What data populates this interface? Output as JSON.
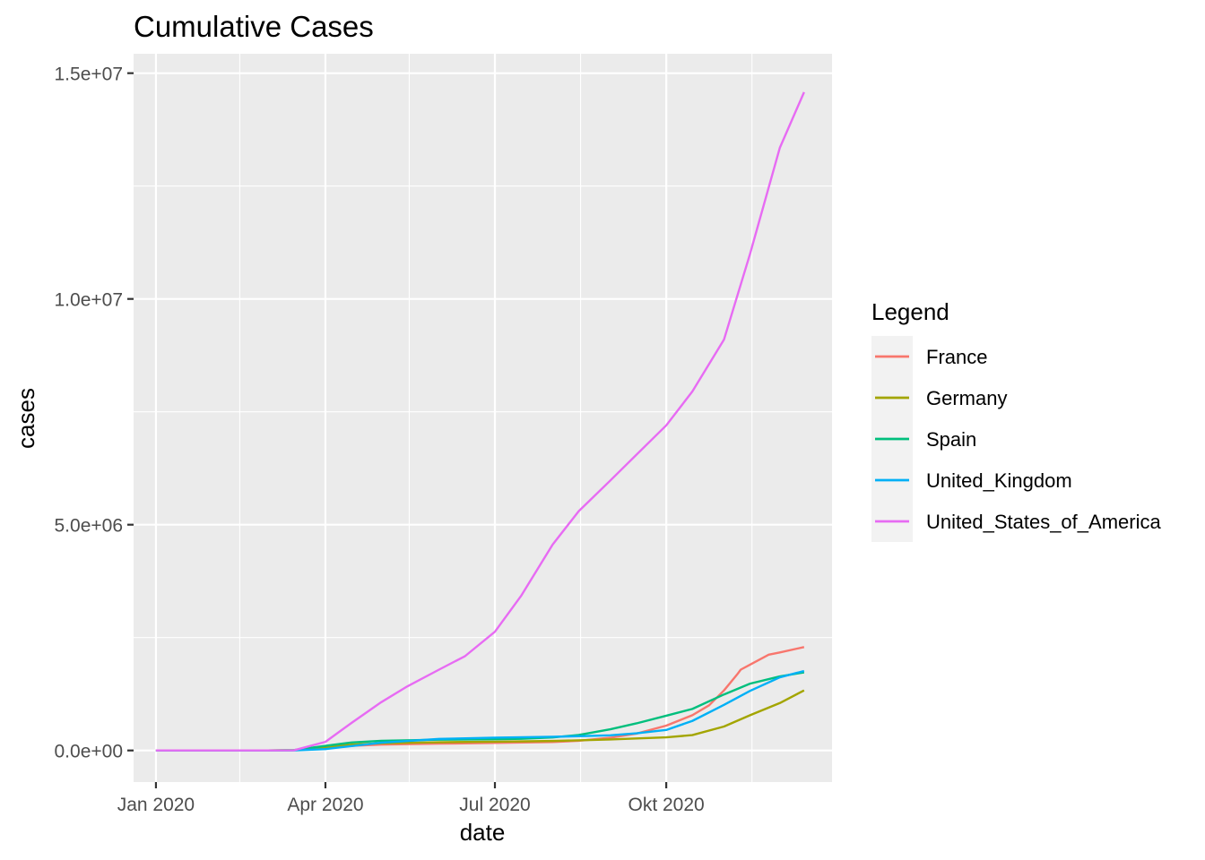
{
  "chart_data": {
    "type": "line",
    "title": "Cumulative Cases",
    "xlabel": "date",
    "ylabel": "cases",
    "x_ticks": [
      {
        "date": "2020-01-01",
        "label": "Jan 2020"
      },
      {
        "date": "2020-04-01",
        "label": "Apr 2020"
      },
      {
        "date": "2020-07-01",
        "label": "Jul 2020"
      },
      {
        "date": "2020-10-01",
        "label": "Okt 2020"
      }
    ],
    "x_minor_ticks": [
      "2020-02-15",
      "2020-05-16",
      "2020-08-16",
      "2020-11-16"
    ],
    "xlim": [
      "2019-12-20",
      "2020-12-29"
    ],
    "y_ticks": [
      {
        "value": 0,
        "label": "0.0e+00"
      },
      {
        "value": 5000000,
        "label": "5.0e+06"
      },
      {
        "value": 10000000,
        "label": "1.0e+07"
      },
      {
        "value": 15000000,
        "label": "1.5e+07"
      }
    ],
    "y_minor_ticks": [
      2500000,
      7500000,
      12500000
    ],
    "ylim": [
      -700000,
      15430000
    ],
    "grid": true,
    "legend": {
      "title": "Legend",
      "position": "right"
    },
    "series": [
      {
        "name": "France",
        "color": "#F8766D",
        "points": [
          [
            "2020-01-01",
            0
          ],
          [
            "2020-03-01",
            100
          ],
          [
            "2020-03-15",
            5400
          ],
          [
            "2020-04-01",
            52000
          ],
          [
            "2020-04-15",
            103000
          ],
          [
            "2020-05-01",
            130000
          ],
          [
            "2020-06-01",
            151000
          ],
          [
            "2020-07-01",
            166000
          ],
          [
            "2020-08-01",
            188000
          ],
          [
            "2020-08-15",
            213000
          ],
          [
            "2020-09-01",
            282000
          ],
          [
            "2020-09-15",
            373000
          ],
          [
            "2020-10-01",
            550000
          ],
          [
            "2020-10-15",
            780000
          ],
          [
            "2020-10-24",
            1000000
          ],
          [
            "2020-11-01",
            1330000
          ],
          [
            "2020-11-08",
            1680000
          ],
          [
            "2020-11-10",
            1790000
          ],
          [
            "2020-11-15",
            1900000
          ],
          [
            "2020-11-25",
            2120000
          ],
          [
            "2020-12-01",
            2170000
          ],
          [
            "2020-12-14",
            2290000
          ]
        ]
      },
      {
        "name": "Germany",
        "color": "#A3A500",
        "points": [
          [
            "2020-01-01",
            0
          ],
          [
            "2020-03-01",
            130
          ],
          [
            "2020-03-15",
            5800
          ],
          [
            "2020-04-01",
            72000
          ],
          [
            "2020-04-15",
            130000
          ],
          [
            "2020-05-01",
            160000
          ],
          [
            "2020-06-01",
            182000
          ],
          [
            "2020-07-01",
            195000
          ],
          [
            "2020-08-01",
            210000
          ],
          [
            "2020-09-01",
            243000
          ],
          [
            "2020-10-01",
            290000
          ],
          [
            "2020-10-15",
            340000
          ],
          [
            "2020-11-01",
            530000
          ],
          [
            "2020-11-15",
            780000
          ],
          [
            "2020-12-01",
            1050000
          ],
          [
            "2020-12-14",
            1330000
          ]
        ]
      },
      {
        "name": "Spain",
        "color": "#00BF7D",
        "points": [
          [
            "2020-01-01",
            0
          ],
          [
            "2020-03-01",
            80
          ],
          [
            "2020-03-15",
            7800
          ],
          [
            "2020-04-01",
            102000
          ],
          [
            "2020-04-15",
            177000
          ],
          [
            "2020-05-01",
            213000
          ],
          [
            "2020-06-01",
            239000
          ],
          [
            "2020-07-01",
            250000
          ],
          [
            "2020-07-15",
            258000
          ],
          [
            "2020-08-01",
            288000
          ],
          [
            "2020-08-15",
            343000
          ],
          [
            "2020-09-01",
            470000
          ],
          [
            "2020-09-15",
            600000
          ],
          [
            "2020-10-01",
            770000
          ],
          [
            "2020-10-15",
            920000
          ],
          [
            "2020-11-01",
            1240000
          ],
          [
            "2020-11-15",
            1480000
          ],
          [
            "2020-12-01",
            1640000
          ],
          [
            "2020-12-14",
            1730000
          ]
        ]
      },
      {
        "name": "United_Kingdom",
        "color": "#00B0F6",
        "points": [
          [
            "2020-01-01",
            0
          ],
          [
            "2020-03-01",
            35
          ],
          [
            "2020-03-15",
            1400
          ],
          [
            "2020-04-01",
            30000
          ],
          [
            "2020-04-15",
            98000
          ],
          [
            "2020-05-01",
            172000
          ],
          [
            "2020-06-01",
            255000
          ],
          [
            "2020-07-01",
            283000
          ],
          [
            "2020-08-01",
            304000
          ],
          [
            "2020-08-15",
            316000
          ],
          [
            "2020-09-01",
            335000
          ],
          [
            "2020-09-15",
            381000
          ],
          [
            "2020-10-01",
            454000
          ],
          [
            "2020-10-15",
            654000
          ],
          [
            "2020-11-01",
            1010000
          ],
          [
            "2020-11-15",
            1320000
          ],
          [
            "2020-12-01",
            1620000
          ],
          [
            "2020-12-14",
            1760000
          ]
        ]
      },
      {
        "name": "United_States_of_America",
        "color": "#E76BF3",
        "points": [
          [
            "2020-01-01",
            0
          ],
          [
            "2020-03-01",
            70
          ],
          [
            "2020-03-15",
            2800
          ],
          [
            "2020-04-01",
            190000
          ],
          [
            "2020-04-15",
            610000
          ],
          [
            "2020-05-01",
            1070000
          ],
          [
            "2020-05-15",
            1420000
          ],
          [
            "2020-06-01",
            1790000
          ],
          [
            "2020-06-15",
            2090000
          ],
          [
            "2020-07-01",
            2630000
          ],
          [
            "2020-07-15",
            3420000
          ],
          [
            "2020-08-01",
            4560000
          ],
          [
            "2020-08-15",
            5300000
          ],
          [
            "2020-09-01",
            5980000
          ],
          [
            "2020-09-15",
            6550000
          ],
          [
            "2020-10-01",
            7200000
          ],
          [
            "2020-10-15",
            7950000
          ],
          [
            "2020-11-01",
            9100000
          ],
          [
            "2020-11-15",
            11000000
          ],
          [
            "2020-12-01",
            13350000
          ],
          [
            "2020-12-14",
            14580000
          ]
        ]
      }
    ]
  }
}
